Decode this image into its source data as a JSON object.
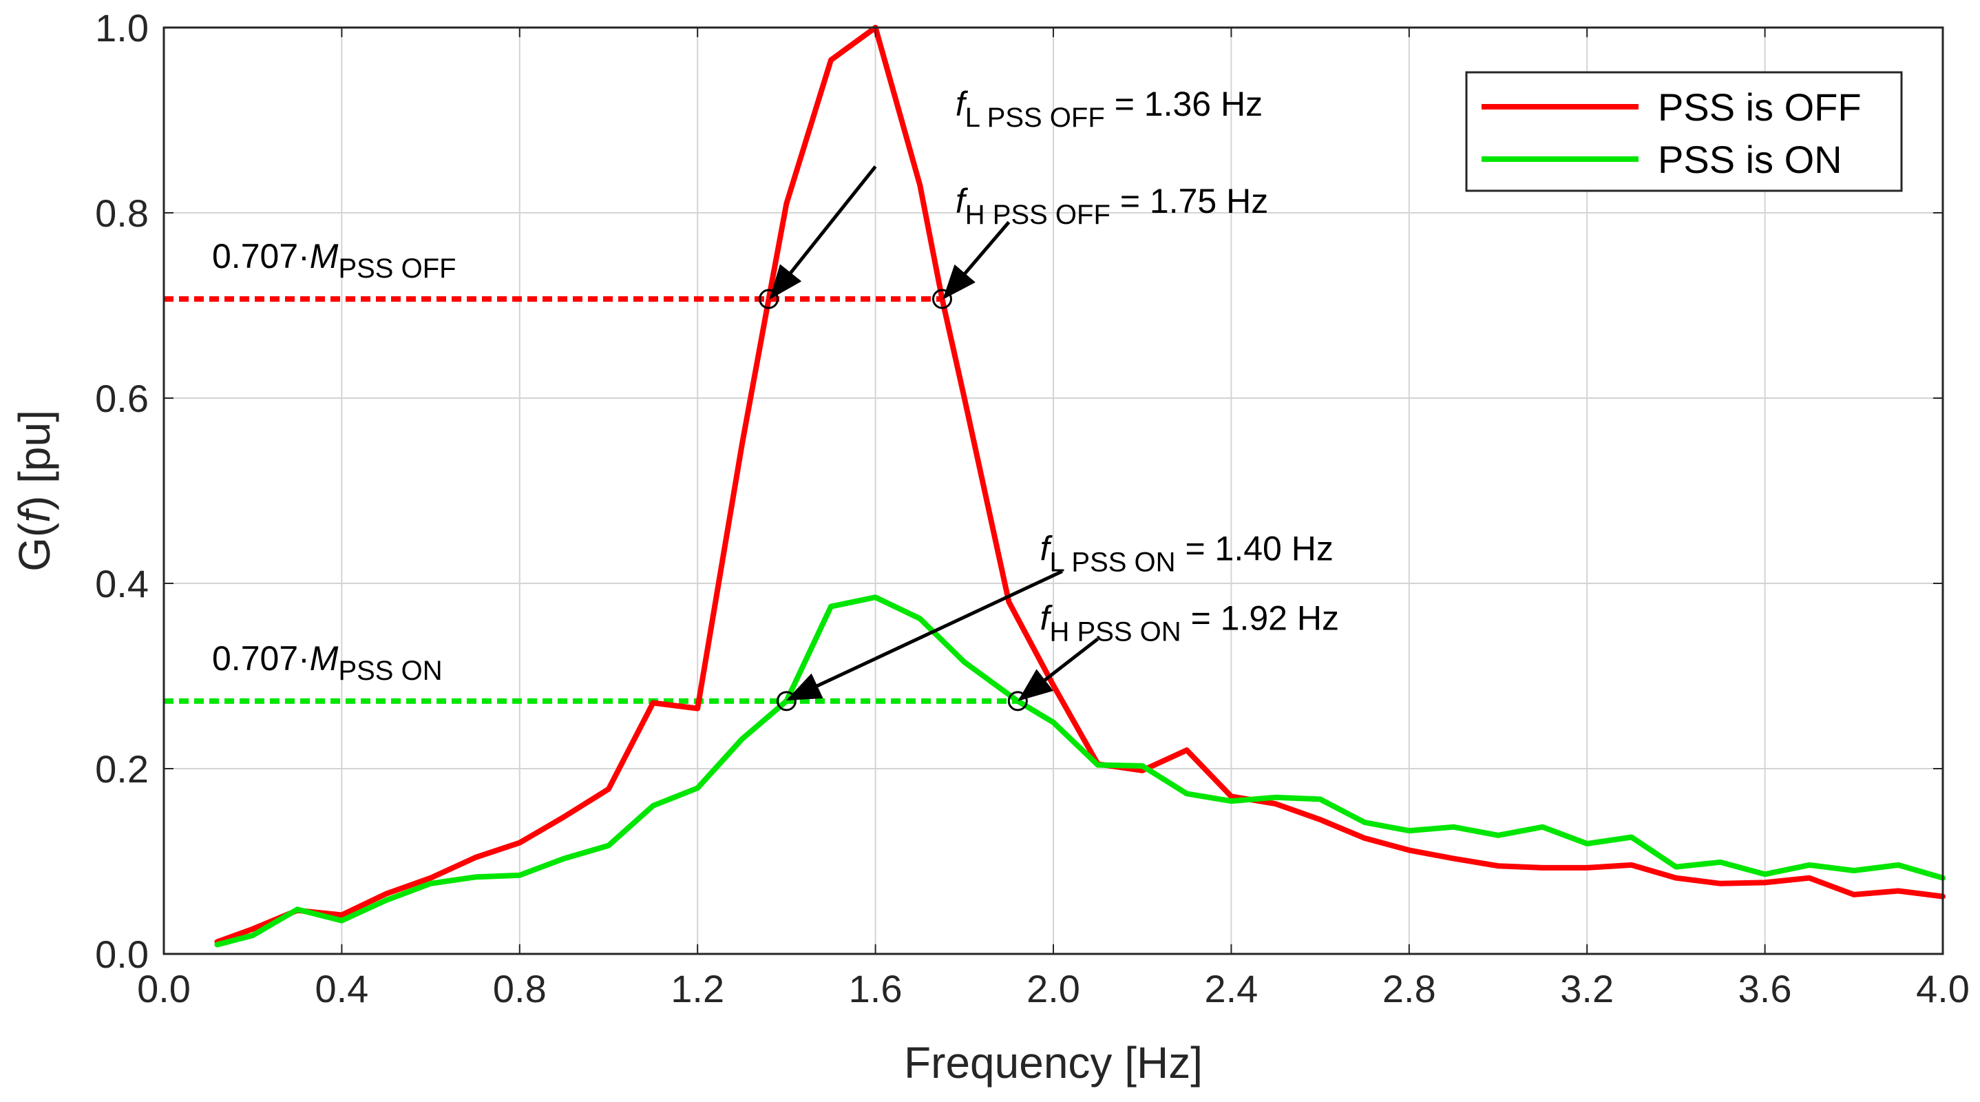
{
  "chart_data": {
    "type": "line",
    "title": "",
    "xlabel": "Frequency [Hz]",
    "ylabel": "G(f) [pu]",
    "xlim": [
      0.0,
      4.0
    ],
    "ylim": [
      0.0,
      1.0
    ],
    "grid": true,
    "legend_placement": "top-right",
    "x_ticks": [
      "0.0",
      "0.4",
      "0.8",
      "1.2",
      "1.6",
      "2.0",
      "2.4",
      "2.8",
      "3.2",
      "3.6",
      "4.0"
    ],
    "y_ticks": [
      "0.0",
      "0.2",
      "0.4",
      "0.6",
      "0.8",
      "1.0"
    ],
    "colors": {
      "pss_off": "#ff0000",
      "pss_on": "#00e600"
    },
    "series": [
      {
        "name": "PSS is OFF",
        "color": "#ff0000",
        "x": [
          0.12,
          0.2,
          0.3,
          0.4,
          0.5,
          0.6,
          0.7,
          0.8,
          0.9,
          1.0,
          1.1,
          1.2,
          1.3,
          1.36,
          1.4,
          1.5,
          1.6,
          1.7,
          1.75,
          1.8,
          1.9,
          2.0,
          2.1,
          2.2,
          2.3,
          2.4,
          2.5,
          2.6,
          2.7,
          2.8,
          2.9,
          3.0,
          3.1,
          3.2,
          3.3,
          3.4,
          3.5,
          3.6,
          3.7,
          3.8,
          3.9,
          4.0
        ],
        "y": [
          0.013,
          0.027,
          0.047,
          0.042,
          0.065,
          0.082,
          0.104,
          0.12,
          0.148,
          0.178,
          0.271,
          0.265,
          0.55,
          0.707,
          0.81,
          0.965,
          1.0,
          0.83,
          0.707,
          0.6,
          0.38,
          0.29,
          0.205,
          0.198,
          0.22,
          0.17,
          0.162,
          0.145,
          0.125,
          0.112,
          0.103,
          0.095,
          0.093,
          0.093,
          0.096,
          0.082,
          0.076,
          0.077,
          0.082,
          0.064,
          0.068,
          0.062
        ]
      },
      {
        "name": "PSS is ON",
        "color": "#00e600",
        "x": [
          0.12,
          0.2,
          0.3,
          0.4,
          0.5,
          0.6,
          0.7,
          0.8,
          0.9,
          1.0,
          1.1,
          1.2,
          1.3,
          1.4,
          1.5,
          1.6,
          1.7,
          1.8,
          1.92,
          2.0,
          2.1,
          2.2,
          2.3,
          2.4,
          2.5,
          2.6,
          2.7,
          2.8,
          2.9,
          3.0,
          3.1,
          3.2,
          3.3,
          3.4,
          3.5,
          3.6,
          3.7,
          3.8,
          3.9,
          4.0
        ],
        "y": [
          0.01,
          0.02,
          0.048,
          0.036,
          0.058,
          0.076,
          0.083,
          0.085,
          0.103,
          0.117,
          0.16,
          0.179,
          0.232,
          0.273,
          0.375,
          0.385,
          0.362,
          0.315,
          0.273,
          0.25,
          0.204,
          0.203,
          0.173,
          0.165,
          0.169,
          0.167,
          0.142,
          0.133,
          0.137,
          0.128,
          0.137,
          0.119,
          0.126,
          0.094,
          0.099,
          0.086,
          0.096,
          0.09,
          0.096,
          0.082
        ]
      }
    ],
    "reference_lines": [
      {
        "y": 0.707,
        "x_from": 0.0,
        "x_to": 1.75,
        "color": "#ff0000",
        "label_prefix": "0.707·",
        "label_var": "M",
        "label_sub": "PSS OFF"
      },
      {
        "y": 0.273,
        "x_from": 0.0,
        "x_to": 1.92,
        "color": "#00e600",
        "label_prefix": "0.707·",
        "label_var": "M",
        "label_sub": "PSS ON"
      }
    ],
    "markers": [
      {
        "x": 1.36,
        "y": 0.707
      },
      {
        "x": 1.75,
        "y": 0.707
      },
      {
        "x": 1.4,
        "y": 0.273
      },
      {
        "x": 1.92,
        "y": 0.273
      }
    ],
    "annotations": [
      {
        "var": "f",
        "sub": "L PSS OFF",
        "value": "= 1.36 Hz",
        "x": 1.78,
        "y": 0.905,
        "arrow_from": [
          1.6,
          0.85
        ],
        "arrow_to": [
          1.36,
          0.707
        ]
      },
      {
        "var": "f",
        "sub": "H PSS OFF",
        "value": "= 1.75 Hz",
        "x": 1.78,
        "y": 0.8,
        "arrow_from": [
          1.9,
          0.79
        ],
        "arrow_to": [
          1.75,
          0.707
        ]
      },
      {
        "var": "f",
        "sub": "L PSS ON",
        "value": "= 1.40 Hz",
        "x": 1.97,
        "y": 0.425,
        "arrow_from": [
          2.02,
          0.413
        ],
        "arrow_to": [
          1.4,
          0.273
        ]
      },
      {
        "var": "f",
        "sub": "H PSS ON",
        "value": "= 1.92 Hz",
        "x": 1.97,
        "y": 0.35,
        "arrow_from": [
          2.1,
          0.34
        ],
        "arrow_to": [
          1.92,
          0.273
        ]
      }
    ],
    "ylabel_parts": {
      "prefix": "G(",
      "var": "f",
      "suffix": ") [pu]"
    },
    "legend": [
      "PSS is OFF",
      "PSS is ON"
    ]
  }
}
